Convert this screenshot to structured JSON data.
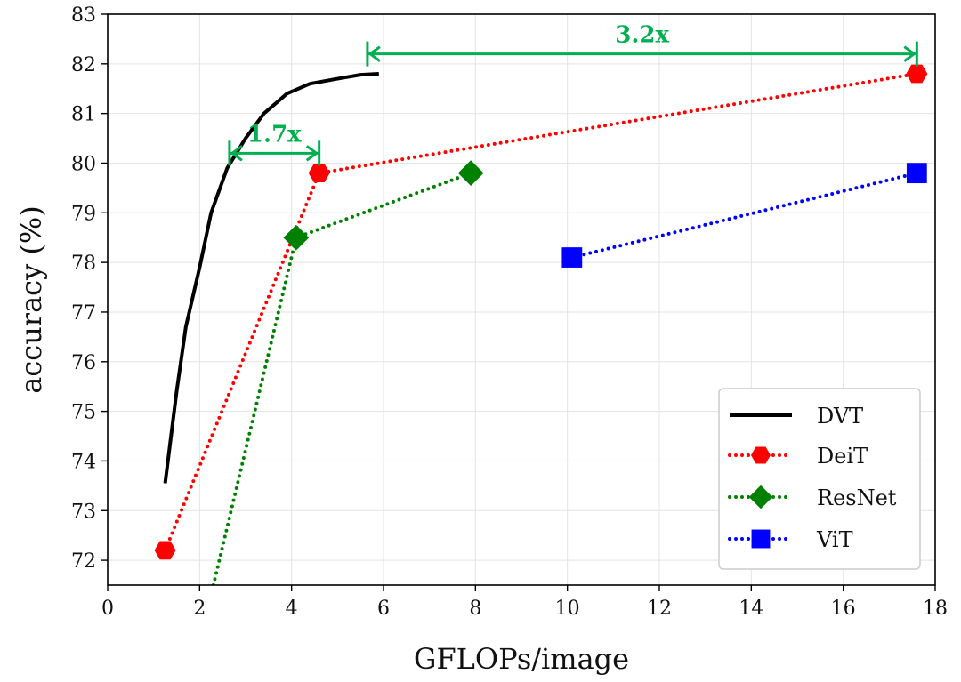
{
  "chart_data": {
    "type": "line",
    "xlabel": "GFLOPs/image",
    "ylabel": "accuracy (%)",
    "xlim": [
      0,
      18
    ],
    "ylim": [
      71.5,
      83
    ],
    "xticks": [
      0,
      2,
      4,
      6,
      8,
      10,
      12,
      14,
      16,
      18
    ],
    "yticks": [
      72,
      73,
      74,
      75,
      76,
      77,
      78,
      79,
      80,
      81,
      82,
      83
    ],
    "grid": true,
    "legend_position": "bottom-right",
    "series": [
      {
        "name": "DVT",
        "color": "#000000",
        "line_style": "solid",
        "marker": "none",
        "x": [
          1.25,
          1.5,
          1.7,
          2.0,
          2.25,
          2.6,
          3.0,
          3.4,
          3.9,
          4.4,
          5.0,
          5.5,
          5.9
        ],
        "y": [
          73.55,
          75.4,
          76.7,
          77.9,
          79.0,
          79.9,
          80.5,
          81.0,
          81.4,
          81.6,
          81.7,
          81.78,
          81.8
        ]
      },
      {
        "name": "DeiT",
        "color": "#ff0000",
        "line_style": "dotted",
        "marker": "hexagon",
        "x": [
          1.25,
          4.6,
          17.6
        ],
        "y": [
          72.2,
          79.8,
          81.8
        ]
      },
      {
        "name": "ResNet",
        "color": "#008000",
        "line_style": "dotted",
        "marker": "diamond",
        "x": [
          2.3,
          4.1,
          7.9
        ],
        "y": [
          71.5,
          78.5,
          79.8
        ]
      },
      {
        "name": "ViT",
        "color": "#0000ff",
        "line_style": "dotted",
        "marker": "square",
        "x": [
          10.1,
          17.6
        ],
        "y": [
          78.1,
          79.8
        ]
      }
    ],
    "annotations": [
      {
        "text": "1.7x",
        "x_start": 2.65,
        "x_end": 4.6,
        "y": 80.2,
        "color": "#00b050"
      },
      {
        "text": "3.2x",
        "x_start": 5.65,
        "x_end": 17.6,
        "y": 82.2,
        "color": "#00b050"
      }
    ]
  }
}
